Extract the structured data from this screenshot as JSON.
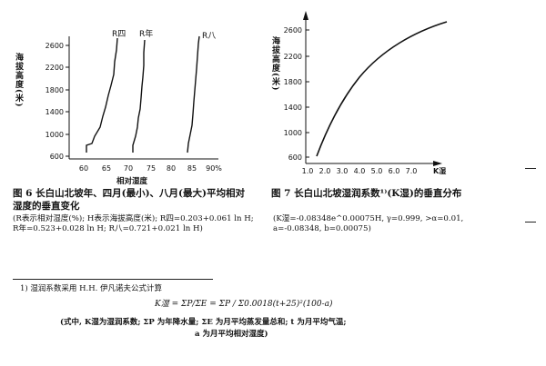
{
  "figure6": {
    "ylabel": "海拔高度(米)",
    "xlabel": "相对湿度",
    "yticks": [
      "2600",
      "2200",
      "1800",
      "1400",
      "1000",
      "600"
    ],
    "xticks": [
      "60",
      "65",
      "70",
      "75",
      "80",
      "85",
      "90%"
    ],
    "curve_labels": [
      "R四",
      "R年",
      "R八"
    ],
    "caption": "图 6  长白山北坡年、四月(最小)、八月(最大)平均相对湿度的垂直变化",
    "note": "(R表示相对湿度(%); H表示海拔高度(米); R四=0.203+0.061 ln H; R年=0.523+0.028 ln H; R八=0.721+0.021 ln H)"
  },
  "figure7": {
    "ylabel": "海拔高度(米)",
    "xlabel": "K湿",
    "yticks": [
      "2600",
      "2200",
      "1800",
      "1400",
      "1000",
      "600"
    ],
    "xticks": [
      "1.0",
      "2.0",
      "3.0",
      "4.0",
      "5.0",
      "6.0",
      "7.0"
    ],
    "caption": "图 7  长白山北坡湿润系数¹⁾(K湿)的垂直分布",
    "note": "(K湿=-0.08348e^0.00075H, γ=0.999, >α=0.01, a=-0.08348, b=0.00075)"
  },
  "footnote": {
    "line1": "1) 湿润系数采用 H.H. 伊凡诺夫公式计算",
    "formula": "K湿 = ΣP/ΣE = ΣP / Σ0.0018(t+25)²(100-a)",
    "line2": "(式中, K湿为湿润系数; ΣP 为年降水量; ΣE 为月平均蒸发量总和; t 为月平均气温;",
    "line3": "a 为月平均相对湿度)"
  }
}
